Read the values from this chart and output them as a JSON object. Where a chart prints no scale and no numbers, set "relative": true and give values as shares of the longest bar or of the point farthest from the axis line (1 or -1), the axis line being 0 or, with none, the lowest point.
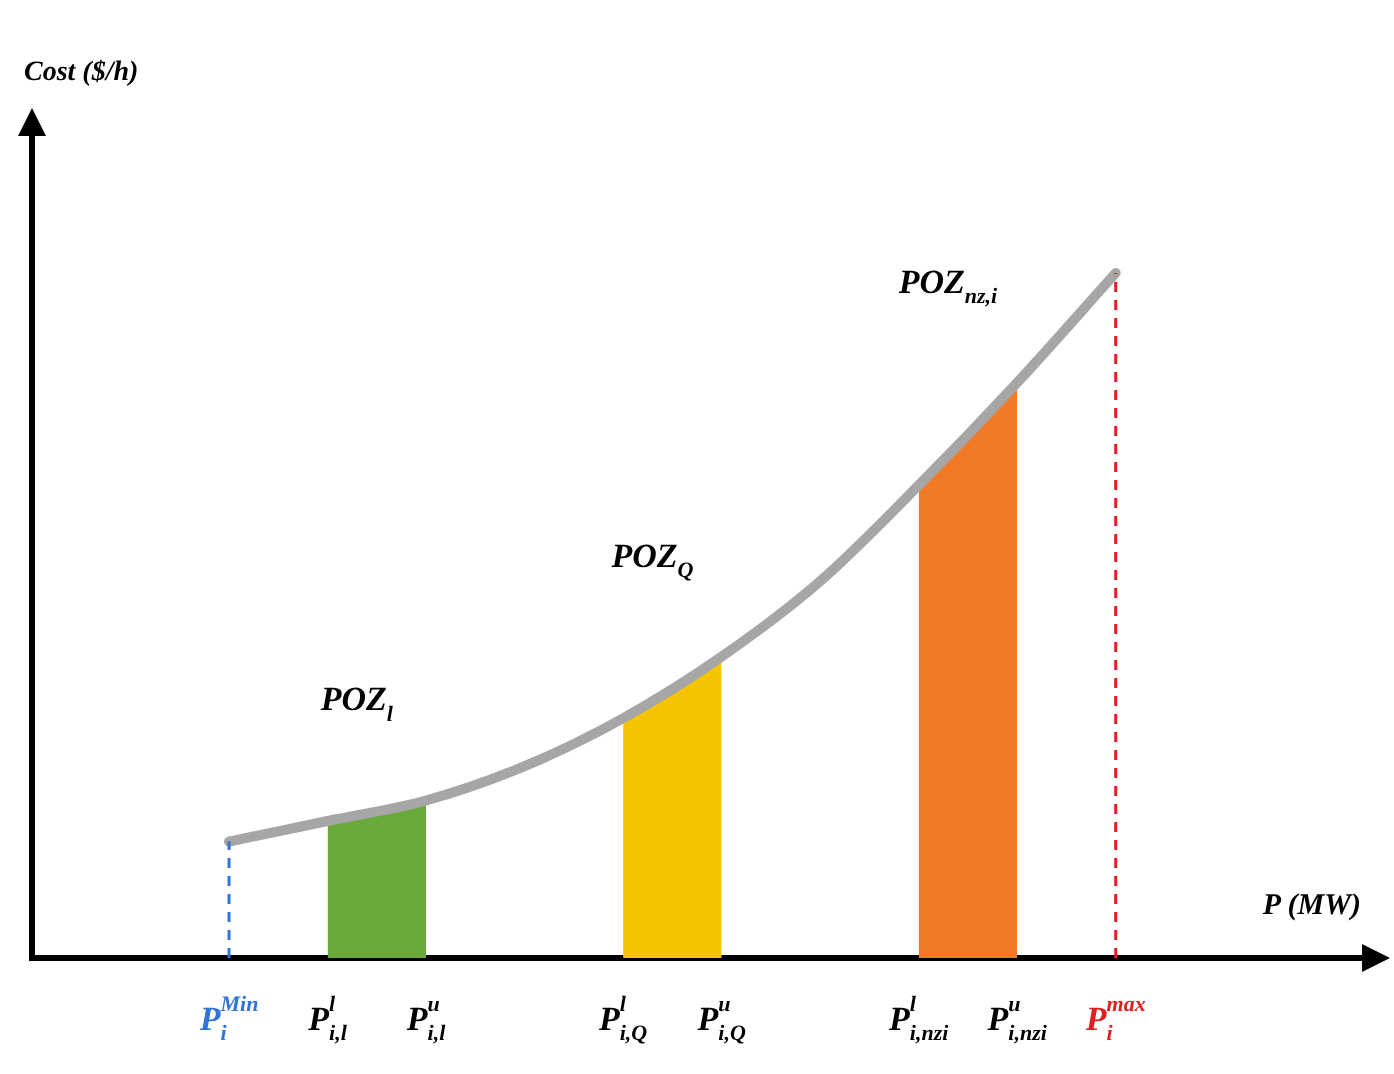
{
  "chart_data": {
    "type": "line",
    "relative": true,
    "xlabel": "P (MW)",
    "categories": [
      null,
      null,
      null,
      null,
      "P$_{i}$$^{Min}$",
      null,
      "P$_{i,l}$$^{l}$",
      null,
      "P$_{i,l}$$^{u}$",
      null,
      null,
      null,
      "P$_{i,Q}$$^{l}$",
      null,
      "P$_{i,Q}$$^{u}$",
      null,
      null,
      null,
      "P$_{i,nzi}$$^{l}$",
      null,
      "P$_{i,nzi}$$^{u}$",
      null,
      "P$_{i}$$^{max}$",
      null,
      null,
      null,
      null,
      null
    ],
    "series": [
      {
        "type": "line",
        "color": "#a6a6a6",
        "values": [
          null,
          null,
          null,
          null,
          0.17,
          null,
          0.2,
          null,
          0.23,
          null,
          0.28,
          null,
          0.35,
          null,
          0.44,
          null,
          0.55,
          null,
          0.69,
          null,
          0.84,
          null,
          1,
          null,
          null,
          null,
          null,
          null
        ]
      },
      {
        "type": "area",
        "color": "#6aaa3a",
        "values": [
          null,
          null,
          null,
          null,
          null,
          null,
          0.2,
          null,
          0.23,
          null,
          null,
          null,
          null,
          null,
          null,
          null,
          null,
          null,
          null,
          null,
          null,
          null,
          null,
          null,
          null,
          null,
          null,
          null
        ]
      },
      {
        "type": "area",
        "color": "#f5c400",
        "values": [
          null,
          null,
          null,
          null,
          null,
          null,
          null,
          null,
          null,
          null,
          null,
          null,
          0.35,
          null,
          0.44,
          null,
          null,
          null,
          null,
          null,
          null,
          null,
          null,
          null,
          null,
          null,
          null,
          null
        ]
      },
      {
        "type": "area",
        "color": "#f07a28",
        "values": [
          null,
          null,
          null,
          null,
          null,
          null,
          null,
          null,
          null,
          null,
          null,
          null,
          null,
          null,
          null,
          null,
          null,
          null,
          0.69,
          null,
          0.84,
          null,
          null,
          null,
          null,
          null,
          null,
          null
        ]
      }
    ],
    "ref_lines": [
      {
        "axis": "x",
        "value": "P$_{i}$$^{Min}$",
        "color": "#2e75d6",
        "line_style": "dashed"
      },
      {
        "axis": "x",
        "value": "P$_{i}$$^{max}$",
        "color": "#e02020",
        "line_style": "dashed"
      }
    ],
    "annotations": [
      "Cost ($/h)",
      "POZ$_{l}$",
      "POZ$_{Q}$",
      "POZ$_{nz,i}$"
    ]
  }
}
